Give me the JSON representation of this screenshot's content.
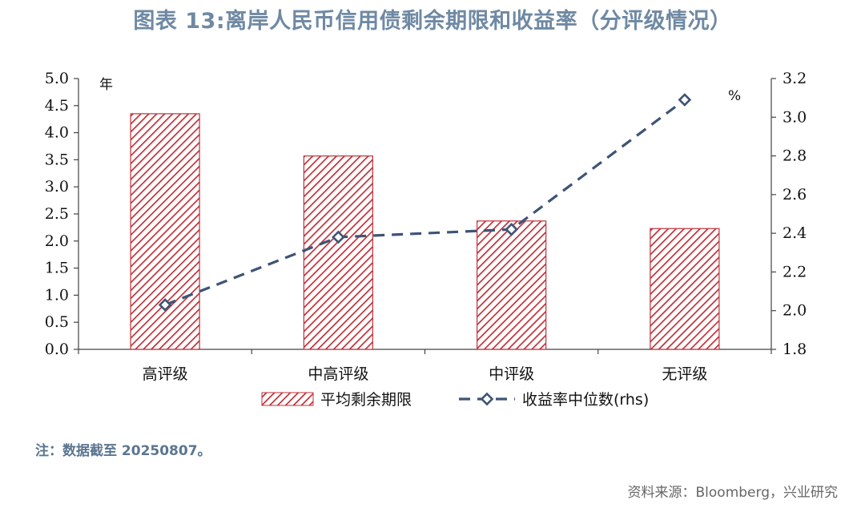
{
  "title": "图表 13:离岸人民币信用债剩余期限和收益率（分评级情况）",
  "note": "注：数据截至 20250807。",
  "source": "资料来源：Bloomberg，兴业研究",
  "colors": {
    "bar": "#c0313a",
    "line": "#3d5476",
    "title": "#6f89a3"
  },
  "chart_data": {
    "type": "bar+line",
    "categories": [
      "高评级",
      "中高评级",
      "中评级",
      "无评级"
    ],
    "series": [
      {
        "name": "平均剩余期限",
        "type": "bar",
        "axis": "left",
        "values": [
          4.35,
          3.57,
          2.37,
          2.23
        ]
      },
      {
        "name": "收益率中位数(rhs)",
        "type": "line",
        "axis": "right",
        "values": [
          2.03,
          2.38,
          2.42,
          3.09
        ]
      }
    ],
    "left_axis": {
      "unit": "年",
      "ylim": [
        0.0,
        5.0
      ],
      "ticks": [
        "0.0",
        "0.5",
        "1.0",
        "1.5",
        "2.0",
        "2.5",
        "3.0",
        "3.5",
        "4.0",
        "4.5",
        "5.0"
      ]
    },
    "right_axis": {
      "unit": "%",
      "ylim": [
        1.8,
        3.2
      ],
      "ticks": [
        "1.8",
        "2.0",
        "2.2",
        "2.4",
        "2.6",
        "2.8",
        "3.0",
        "3.2"
      ]
    },
    "legend": {
      "placement": "bottom-center",
      "bar_label": "平均剩余期限",
      "line_label": "收益率中位数(rhs)"
    },
    "grid": false
  }
}
